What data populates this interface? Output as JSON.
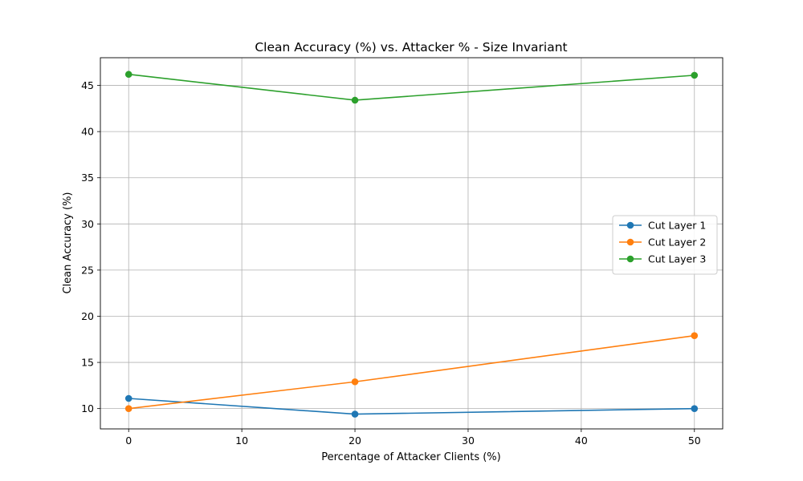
{
  "chart_data": {
    "type": "line",
    "title": "Clean Accuracy (%) vs. Attacker % - Size Invariant",
    "xlabel": "Percentage of Attacker Clients (%)",
    "ylabel": "Clean Accuracy (%)",
    "xlim": [
      -2.5,
      52.5
    ],
    "ylim": [
      7.8,
      48.0
    ],
    "xticks": [
      0,
      10,
      20,
      30,
      40,
      50
    ],
    "yticks": [
      10,
      15,
      20,
      25,
      30,
      35,
      40,
      45
    ],
    "grid": true,
    "legend_position": "center-right",
    "x": [
      0,
      20,
      50
    ],
    "series": [
      {
        "name": "Cut Layer 1",
        "color": "#1f77b4",
        "values": [
          11.1,
          9.4,
          10.0
        ]
      },
      {
        "name": "Cut Layer 2",
        "color": "#ff7f0e",
        "values": [
          10.0,
          12.9,
          17.9
        ]
      },
      {
        "name": "Cut Layer 3",
        "color": "#2ca02c",
        "values": [
          46.2,
          43.4,
          46.1
        ]
      }
    ]
  }
}
